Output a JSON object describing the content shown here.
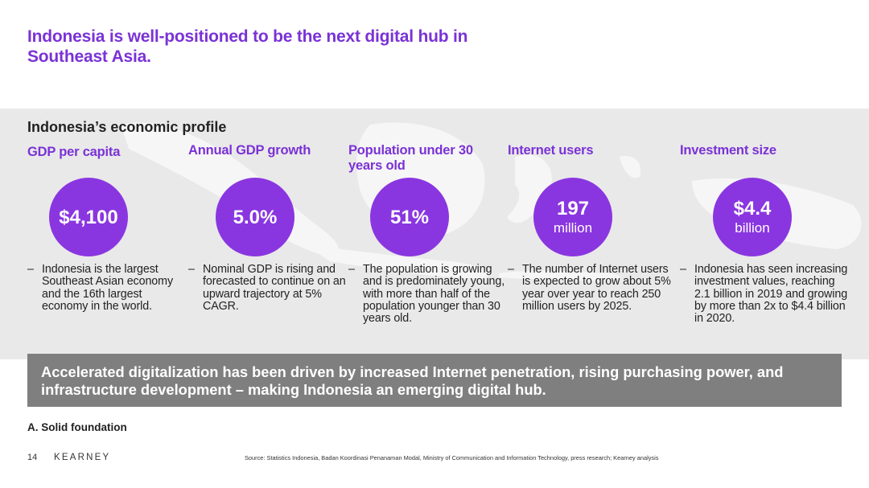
{
  "title": "Indonesia is well-positioned to be the next digital hub in Southeast Asia.",
  "subtitle": "Indonesia’s economic profile",
  "metrics": [
    {
      "label": "GDP per capita",
      "value": "$4,100",
      "unit": "",
      "description": "Indonesia is the largest Southeast Asian economy and the 16th largest economy in the world."
    },
    {
      "label": "Annual GDP growth",
      "value": "5.0%",
      "unit": "",
      "description": "Nominal GDP is rising and forecasted to continue on an upward trajectory at 5% CAGR."
    },
    {
      "label": "Population under 30 years old",
      "value": "51%",
      "unit": "",
      "description": "The population is growing and is predominately young, with more than half of the population younger than 30 years old."
    },
    {
      "label": "Internet users",
      "value": "197",
      "unit": "million",
      "description": "The number of Internet users is expected to grow about 5% year over year to reach 250 million users by 2025."
    },
    {
      "label": "Investment size",
      "value": "$4.4",
      "unit": "billion",
      "description": "Indonesia has seen increasing investment values, reaching 2.1 billion in 2019 and growing by more than 2x to $4.4 billion in 2020."
    }
  ],
  "bullet_dash": "–",
  "banner": "Accelerated digitalization has been driven by increased Internet penetration, rising purchasing power, and infrastructure development – making Indonesia an emerging digital hub.",
  "section": "A. Solid foundation",
  "footer": {
    "page": "14",
    "logo": "KEARNEY",
    "source": "Source: Statistics Indonesia, Badan Koordinasi Penanaman Modal, Ministry of Communication and Information Technology, press research; Kearney analysis"
  },
  "colors": {
    "accent": "#7a32d6",
    "circle": "#8a36e0",
    "banner": "#7f7f7f",
    "band": "#e9e9e9"
  }
}
